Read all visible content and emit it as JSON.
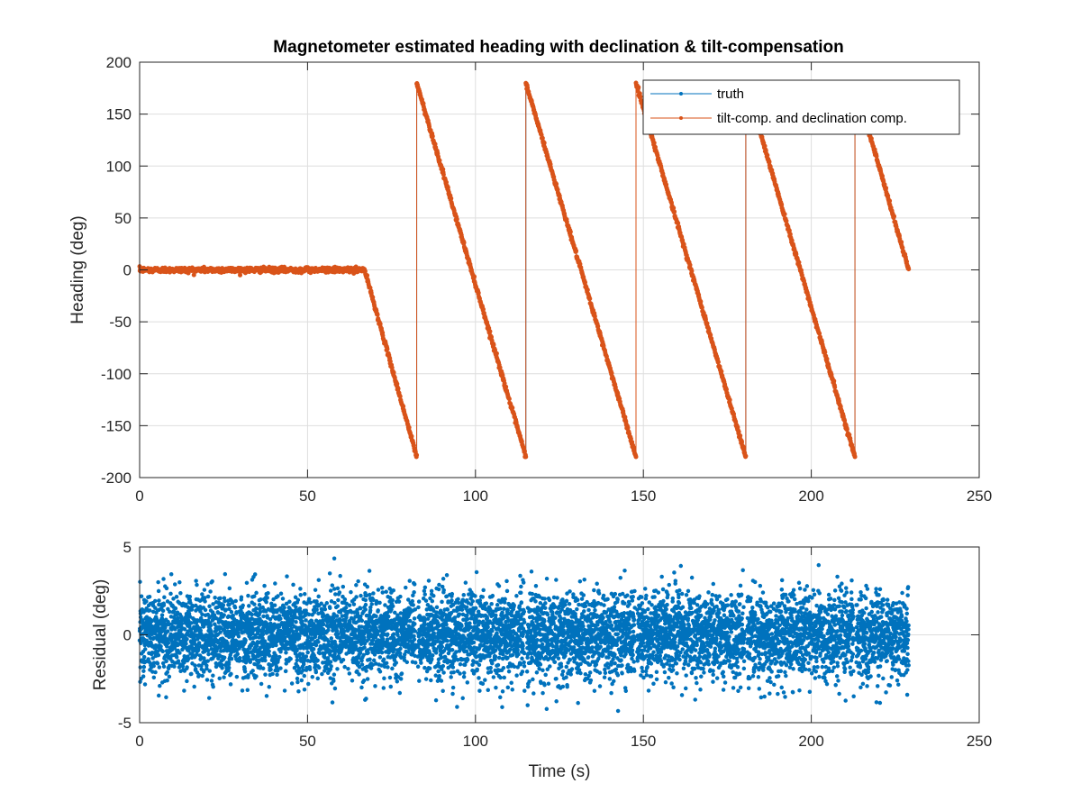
{
  "colors": {
    "truth": "#0072BD",
    "estimate": "#D95319",
    "residual": "#0072BD",
    "axis": "#262626",
    "grid": "#dedede"
  },
  "chart_data": [
    {
      "type": "line",
      "title": "Magnetometer estimated heading with declination & tilt-compensation",
      "xlabel": "",
      "ylabel": "Heading (deg)",
      "xlim": [
        0,
        250
      ],
      "ylim": [
        -200,
        200
      ],
      "xticks": [
        0,
        50,
        100,
        150,
        200,
        250
      ],
      "yticks": [
        -200,
        -150,
        -100,
        -50,
        0,
        50,
        100,
        150,
        200
      ],
      "xticklabels": [
        "0",
        "50",
        "100",
        "150",
        "200",
        "250"
      ],
      "yticklabels": [
        "-200",
        "-150",
        "-100",
        "-50",
        "0",
        "50",
        "100",
        "150",
        "200"
      ],
      "grid": true,
      "legend_position": "top-right",
      "series": [
        {
          "name": "truth",
          "color": "#0072BD",
          "x": [
            0,
            67,
            82.5,
            82.5,
            115,
            115,
            147.8,
            147.8,
            180.5,
            180.5,
            213,
            213,
            229
          ],
          "y": [
            0,
            0,
            -180,
            180,
            -180,
            180,
            -180,
            180,
            -180,
            180,
            -180,
            180,
            0
          ]
        },
        {
          "name": "tilt-comp. and declination comp.",
          "color": "#D95319",
          "x": [
            0,
            67,
            82.5,
            82.5,
            115,
            115,
            147.8,
            147.8,
            180.5,
            180.5,
            213,
            213,
            229
          ],
          "y": [
            0,
            0,
            -180,
            180,
            -180,
            180,
            -180,
            180,
            -180,
            180,
            -180,
            180,
            0
          ],
          "noise_std_deg": 1.2
        }
      ]
    },
    {
      "type": "scatter",
      "title": "",
      "xlabel": "Time (s)",
      "ylabel": "Residual (deg)",
      "xlim": [
        0,
        250
      ],
      "ylim": [
        -5,
        5
      ],
      "xticks": [
        0,
        50,
        100,
        150,
        200,
        250
      ],
      "yticks": [
        -5,
        0,
        5
      ],
      "xticklabels": [
        "0",
        "50",
        "100",
        "150",
        "200",
        "250"
      ],
      "yticklabels": [
        "-5",
        "0",
        "5"
      ],
      "grid": true,
      "residual_range_s": [
        0,
        229
      ],
      "residual_std_deg": 1.2,
      "gaps_at_s": [
        82.5,
        115,
        147.8,
        180.5,
        213
      ]
    }
  ]
}
